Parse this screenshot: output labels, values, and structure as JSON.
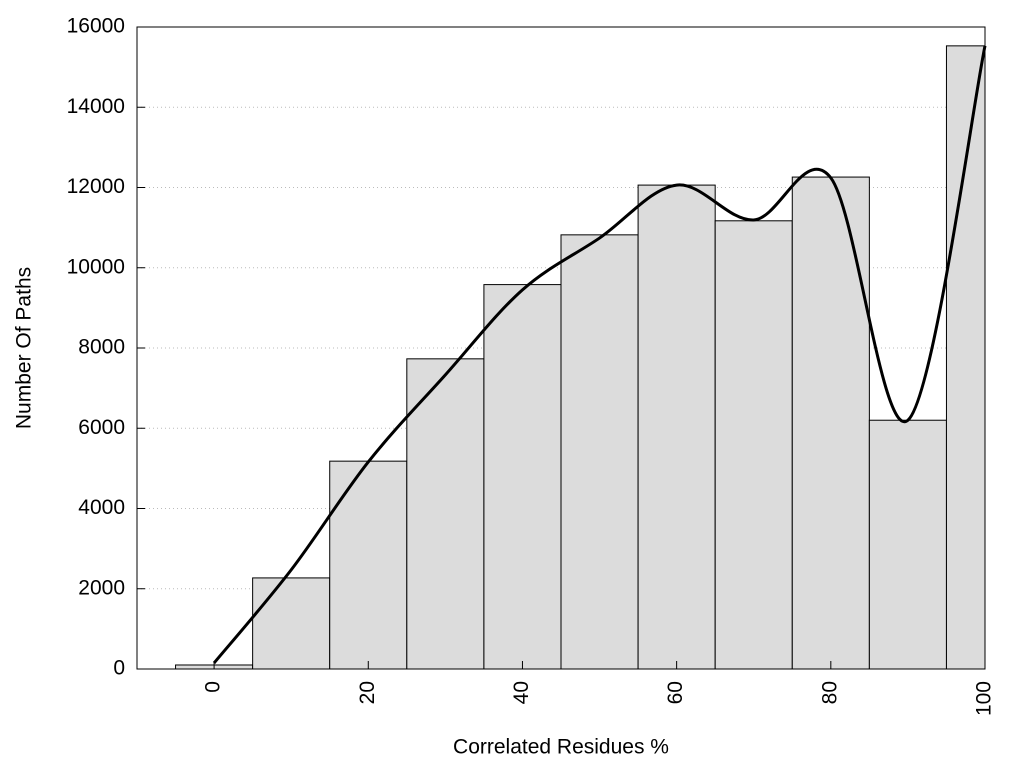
{
  "chart_data": {
    "type": "histogram",
    "xlabel": "Correlated Residues %",
    "ylabel": "Number Of Paths",
    "bins": [
      -5,
      5,
      15,
      25,
      35,
      45,
      55,
      65,
      75,
      85,
      95,
      100
    ],
    "values": [
      100,
      2270,
      5180,
      7730,
      9580,
      10820,
      12060,
      11170,
      12260,
      6200,
      15530
    ],
    "color": "#dcdcdc",
    "xlim": [
      -10,
      100
    ],
    "xticks": [
      0,
      20,
      40,
      60,
      80,
      100
    ],
    "ylim": [
      0,
      16000
    ],
    "yticks": [
      0,
      2000,
      4000,
      6000,
      8000,
      10000,
      12000,
      14000,
      16000
    ],
    "grid": true,
    "curve": {
      "type": "line",
      "color": "#000000",
      "x": [
        0,
        10,
        20,
        30,
        40,
        50,
        60,
        70,
        80,
        90,
        100
      ],
      "values": [
        150,
        2470,
        5160,
        7330,
        9450,
        10740,
        12060,
        11190,
        12240,
        6200,
        15530
      ]
    }
  }
}
